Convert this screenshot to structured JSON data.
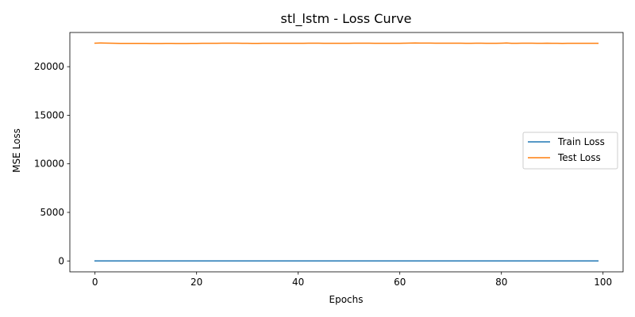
{
  "chart_data": {
    "type": "line",
    "title": "stl_lstm - Loss Curve",
    "xlabel": "Epochs",
    "ylabel": "MSE Loss",
    "xlim": [
      -4.95,
      103.95
    ],
    "ylim": [
      -1120,
      23520
    ],
    "xticks": [
      0,
      20,
      40,
      60,
      80,
      100
    ],
    "yticks": [
      0,
      5000,
      10000,
      15000,
      20000
    ],
    "grid": false,
    "legend_position": "center-right",
    "series": [
      {
        "name": "Train Loss",
        "color": "#1f77b4",
        "x_start": 0,
        "x_step": 1,
        "values": [
          5,
          5,
          4,
          4,
          3,
          3,
          3,
          3,
          3,
          3,
          4,
          4,
          3,
          3,
          3,
          2,
          2,
          2,
          2,
          2,
          2,
          2,
          2,
          2,
          2,
          2,
          2,
          2,
          2,
          2,
          2,
          2,
          2,
          2,
          2,
          2,
          2,
          2,
          2,
          2,
          3,
          3,
          2,
          2,
          3,
          2,
          2,
          2,
          2,
          2,
          2,
          2,
          2,
          2,
          2,
          2,
          2,
          2,
          2,
          2,
          2,
          2,
          2,
          2,
          2,
          2,
          2,
          2,
          2,
          2,
          2,
          2,
          2,
          2,
          2,
          2,
          2,
          2,
          2,
          2,
          2,
          2,
          2,
          2,
          2,
          2,
          2,
          2,
          2,
          2,
          2,
          2,
          2,
          2,
          2,
          2,
          2,
          2,
          2,
          2
        ]
      },
      {
        "name": "Test Loss",
        "color": "#ff7f0e",
        "x_start": 0,
        "x_step": 1,
        "values": [
          22420,
          22440,
          22430,
          22420,
          22410,
          22400,
          22400,
          22400,
          22400,
          22400,
          22400,
          22390,
          22390,
          22390,
          22400,
          22400,
          22390,
          22390,
          22390,
          22400,
          22400,
          22410,
          22410,
          22410,
          22410,
          22420,
          22420,
          22420,
          22420,
          22410,
          22410,
          22400,
          22400,
          22410,
          22410,
          22410,
          22410,
          22410,
          22410,
          22410,
          22410,
          22410,
          22420,
          22420,
          22420,
          22410,
          22410,
          22410,
          22410,
          22410,
          22410,
          22420,
          22420,
          22420,
          22420,
          22410,
          22410,
          22410,
          22410,
          22410,
          22410,
          22420,
          22430,
          22440,
          22430,
          22430,
          22430,
          22420,
          22420,
          22420,
          22420,
          22420,
          22420,
          22410,
          22410,
          22420,
          22420,
          22410,
          22410,
          22410,
          22420,
          22440,
          22410,
          22410,
          22420,
          22420,
          22420,
          22410,
          22410,
          22420,
          22410,
          22410,
          22400,
          22410,
          22410,
          22410,
          22410,
          22410,
          22410,
          22410
        ]
      }
    ]
  }
}
